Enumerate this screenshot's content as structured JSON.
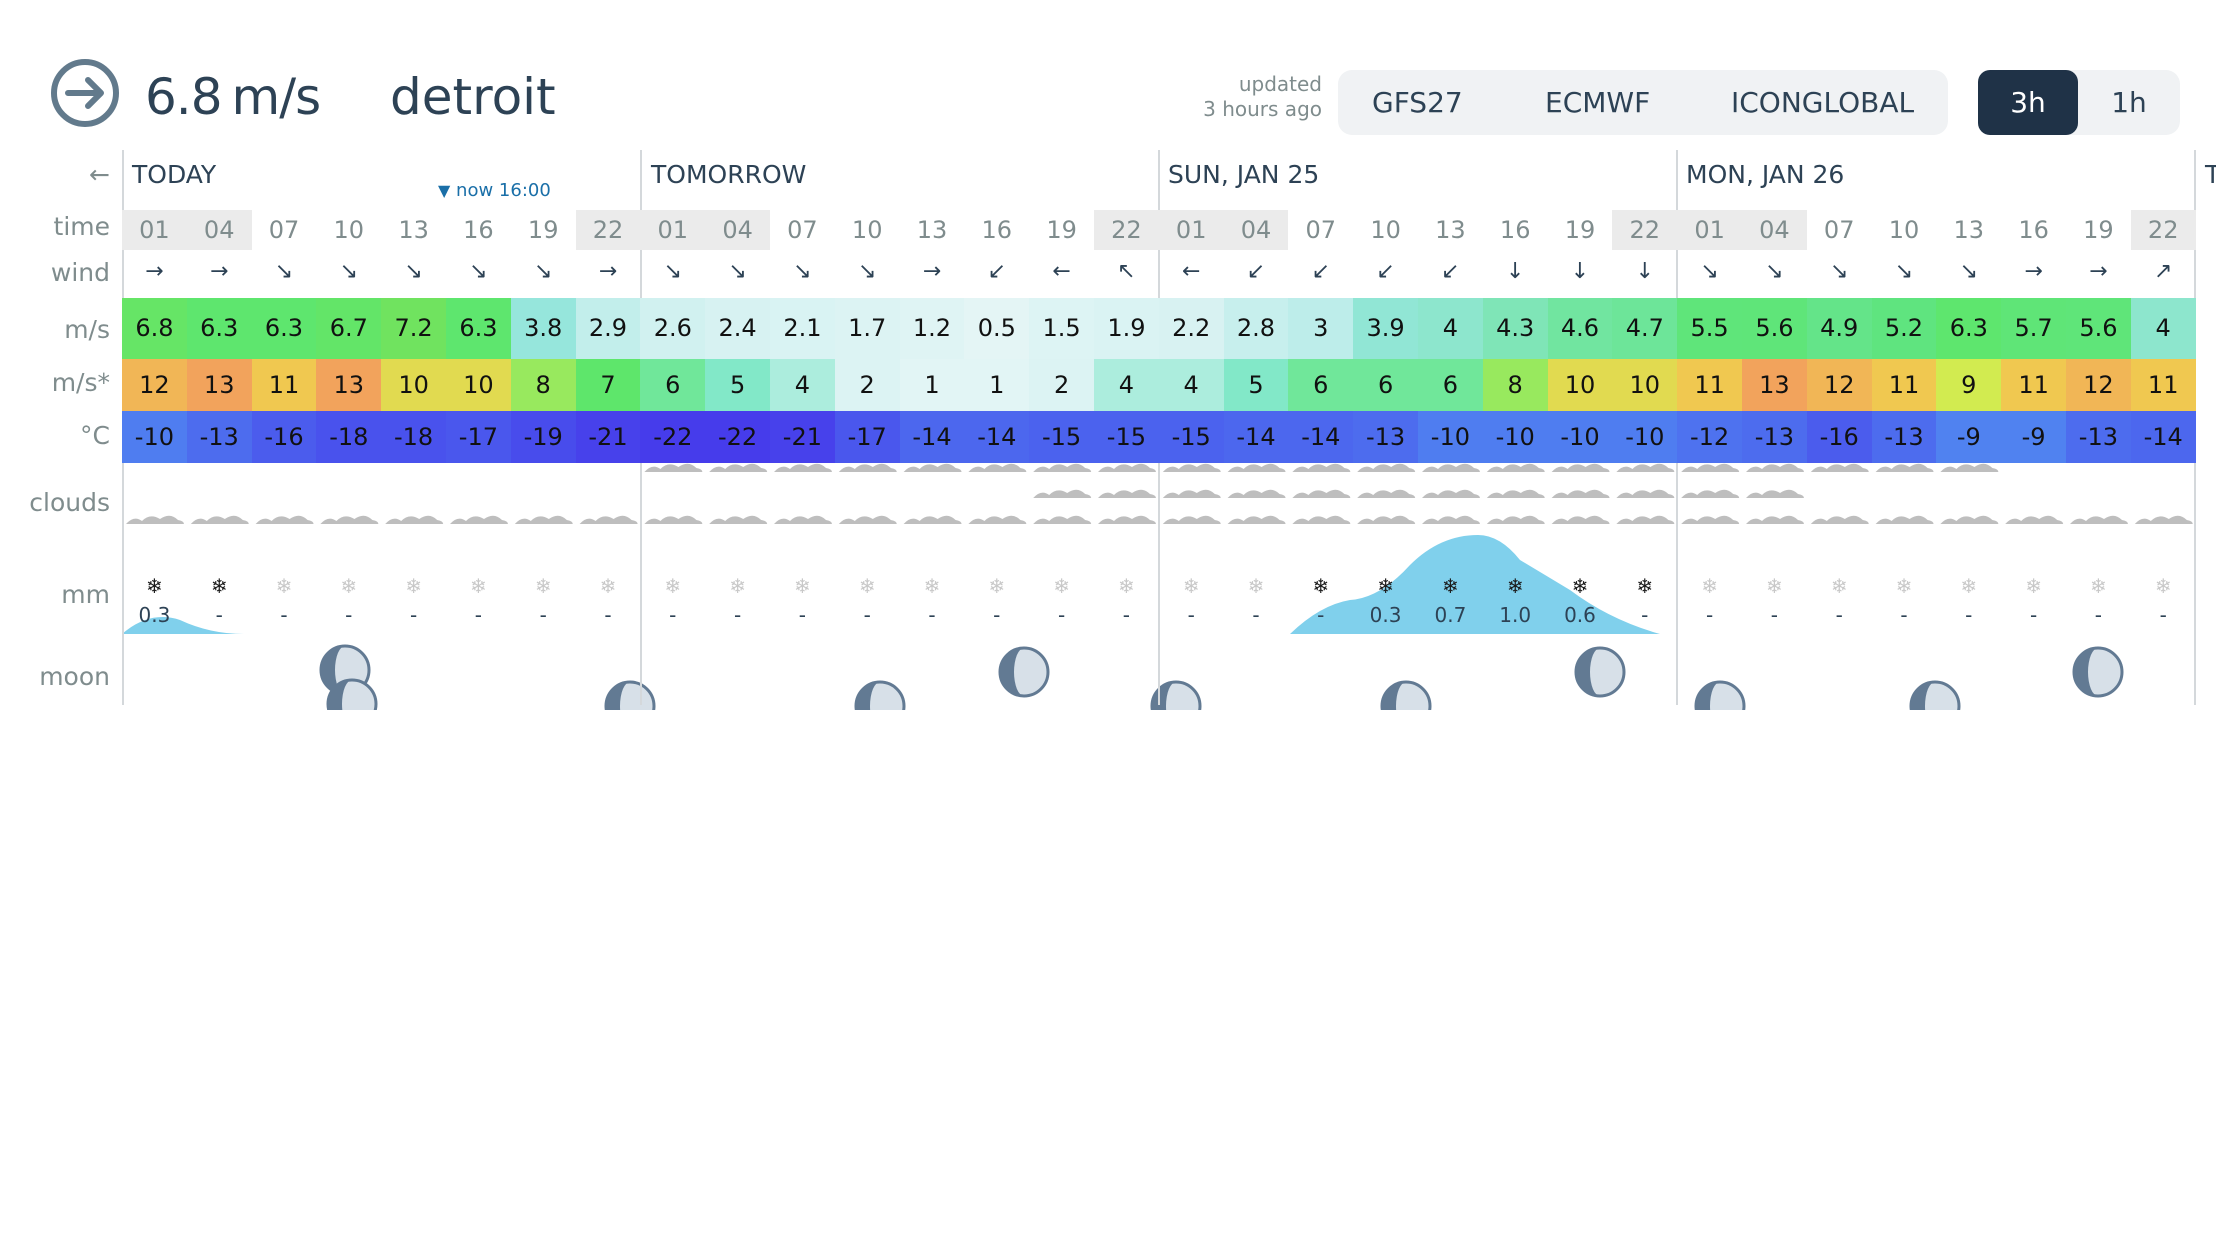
{
  "header": {
    "speed_value": "6.8",
    "speed_unit": "m/s",
    "location": "detroit",
    "updated_line1": "updated",
    "updated_line2": "3 hours ago",
    "models": [
      "GFS27",
      "ECMWF",
      "ICONGLOBAL"
    ],
    "steps": [
      {
        "label": "3h",
        "active": true
      },
      {
        "label": "1h",
        "active": false
      }
    ]
  },
  "grid": {
    "back_arrow": "←",
    "row_labels": {
      "time": "time",
      "wind": "wind",
      "speed": "m/s",
      "gust": "m/s*",
      "temp": "°C",
      "clouds": "clouds",
      "mm": "mm",
      "moon": "moon"
    },
    "now_label": "now 16:00",
    "days": [
      "TODAY",
      "TOMORROW",
      "SUN, JAN 25",
      "MON, JAN 26",
      "T"
    ],
    "times": [
      "01",
      "04",
      "07",
      "10",
      "13",
      "16",
      "19",
      "22",
      "01",
      "04",
      "07",
      "10",
      "13",
      "16",
      "19",
      "22",
      "01",
      "04",
      "07",
      "10",
      "13",
      "16",
      "19",
      "22",
      "01",
      "04",
      "07",
      "10",
      "13",
      "16",
      "19",
      "22"
    ],
    "wind_dir": [
      "→",
      "→",
      "↘",
      "↘",
      "↘",
      "↘",
      "↘",
      "→",
      "↘",
      "↘",
      "↘",
      "↘",
      "→",
      "↙",
      "←",
      "↖",
      "←",
      "↙",
      "↙",
      "↙",
      "↙",
      "↓",
      "↓",
      "↓",
      "↘",
      "↘",
      "↘",
      "↘",
      "↘",
      "→",
      "→",
      "↗"
    ],
    "speed": [
      "6.8",
      "6.3",
      "6.3",
      "6.7",
      "7.2",
      "6.3",
      "3.8",
      "2.9",
      "2.6",
      "2.4",
      "2.1",
      "1.7",
      "1.2",
      "0.5",
      "1.5",
      "1.9",
      "2.2",
      "2.8",
      "3",
      "3.9",
      "4",
      "4.3",
      "4.6",
      "4.7",
      "5.5",
      "5.6",
      "4.9",
      "5.2",
      "6.3",
      "5.7",
      "5.6",
      "4"
    ],
    "gust": [
      "12",
      "13",
      "11",
      "13",
      "10",
      "10",
      "8",
      "7",
      "6",
      "5",
      "4",
      "2",
      "1",
      "1",
      "2",
      "4",
      "4",
      "5",
      "6",
      "6",
      "6",
      "8",
      "10",
      "10",
      "11",
      "13",
      "12",
      "11",
      "9",
      "11",
      "12",
      "11"
    ],
    "temp": [
      "-10",
      "-13",
      "-16",
      "-18",
      "-18",
      "-17",
      "-19",
      "-21",
      "-22",
      "-22",
      "-21",
      "-17",
      "-14",
      "-14",
      "-15",
      "-15",
      "-15",
      "-14",
      "-14",
      "-13",
      "-10",
      "-10",
      "-10",
      "-10",
      "-12",
      "-13",
      "-16",
      "-13",
      "-9",
      "-9",
      "-13",
      "-14"
    ],
    "precip": [
      "0.3",
      "-",
      "-",
      "-",
      "-",
      "-",
      "-",
      "-",
      "-",
      "-",
      "-",
      "-",
      "-",
      "-",
      "-",
      "-",
      "-",
      "-",
      "-",
      "0.3",
      "0.7",
      "1.0",
      "0.6",
      "-",
      "-",
      "-",
      "-",
      "-",
      "-",
      "-",
      "-",
      "-"
    ],
    "snow_active": [
      true,
      true,
      false,
      false,
      false,
      false,
      false,
      false,
      false,
      false,
      false,
      false,
      false,
      false,
      false,
      false,
      false,
      false,
      true,
      true,
      true,
      true,
      true,
      true,
      false,
      false,
      false,
      false,
      false,
      false,
      false,
      false
    ],
    "snow_glyph": "❄",
    "colors": {
      "speed_green": "#5ee66b",
      "gust_orange": "#f2a35c",
      "temp_blue": "#3e5bee",
      "precip_fill": "#80d0ec",
      "moon_fill": "#627a93"
    }
  }
}
